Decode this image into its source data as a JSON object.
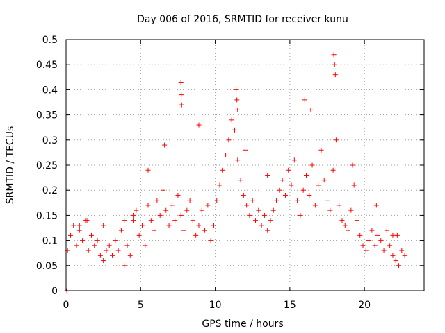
{
  "chart_data": {
    "type": "scatter",
    "title": "Day 006 of 2016, SRMTID for receiver kunu",
    "xlabel": "GPS time / hours",
    "ylabel": "SRMTID / TECUs",
    "xlim": [
      0,
      24
    ],
    "ylim": [
      0,
      0.5
    ],
    "xticks": [
      0,
      5,
      10,
      15,
      20
    ],
    "xtick_labels": [
      "0",
      "5",
      "10",
      "15",
      "20"
    ],
    "yticks": [
      0,
      0.05,
      0.1,
      0.15,
      0.2,
      0.25,
      0.3,
      0.35,
      0.4,
      0.45,
      0.5
    ],
    "ytick_labels": [
      "0",
      "0.05",
      "0.1",
      "0.15",
      "0.2",
      "0.25",
      "0.3",
      "0.35",
      "0.4",
      "0.45",
      "0.5"
    ],
    "grid": true,
    "marker": "+",
    "color": "#ff0000",
    "series": [
      {
        "name": "SRMTID",
        "x": [
          0.05,
          0.1,
          0.3,
          0.5,
          0.7,
          0.9,
          1.1,
          1.3,
          1.5,
          1.7,
          1.9,
          2.1,
          2.3,
          2.5,
          2.7,
          2.9,
          3.1,
          3.3,
          3.5,
          3.7,
          3.9,
          4.1,
          4.3,
          4.5,
          4.7,
          4.9,
          5.1,
          5.3,
          5.5,
          5.7,
          5.9,
          6.1,
          6.3,
          6.5,
          6.7,
          6.9,
          7.1,
          7.3,
          7.5,
          7.7,
          7.9,
          8.1,
          8.3,
          8.5,
          8.7,
          8.9,
          9.1,
          9.3,
          9.5,
          9.7,
          9.9,
          10.1,
          10.3,
          10.5,
          10.7,
          10.9,
          11.1,
          11.3,
          11.5,
          11.7,
          11.9,
          12.1,
          12.3,
          12.5,
          12.7,
          12.9,
          13.1,
          13.3,
          13.5,
          13.7,
          13.9,
          14.1,
          14.3,
          14.5,
          14.7,
          14.9,
          15.1,
          15.3,
          15.5,
          15.7,
          15.9,
          16.1,
          16.3,
          16.5,
          16.7,
          16.9,
          17.1,
          17.3,
          17.5,
          17.7,
          17.9,
          18.1,
          18.3,
          18.5,
          18.7,
          18.9,
          19.1,
          19.3,
          19.5,
          19.7,
          19.9,
          20.1,
          20.3,
          20.5,
          20.7,
          20.9,
          21.1,
          21.3,
          21.5,
          21.7,
          21.9,
          22.1,
          22.3,
          22.5,
          22.7,
          7.7,
          7.72,
          7.75,
          11.4,
          11.45,
          11.5,
          17.95,
          18.0,
          18.05,
          16.0,
          16.4,
          8.9,
          6.6,
          5.5,
          4.5,
          12.0,
          13.5,
          19.2,
          20.8,
          3.9,
          2.5,
          0.9,
          1.4,
          22.2,
          21.9
        ],
        "y": [
          0.0,
          0.08,
          0.11,
          0.13,
          0.09,
          0.12,
          0.1,
          0.14,
          0.08,
          0.11,
          0.09,
          0.1,
          0.07,
          0.06,
          0.08,
          0.09,
          0.07,
          0.1,
          0.08,
          0.12,
          0.05,
          0.09,
          0.07,
          0.15,
          0.16,
          0.11,
          0.13,
          0.09,
          0.17,
          0.14,
          0.12,
          0.18,
          0.15,
          0.2,
          0.16,
          0.13,
          0.17,
          0.14,
          0.19,
          0.15,
          0.12,
          0.16,
          0.18,
          0.14,
          0.11,
          0.13,
          0.16,
          0.12,
          0.17,
          0.1,
          0.13,
          0.18,
          0.21,
          0.24,
          0.27,
          0.3,
          0.34,
          0.32,
          0.26,
          0.22,
          0.19,
          0.17,
          0.15,
          0.18,
          0.14,
          0.16,
          0.13,
          0.15,
          0.12,
          0.14,
          0.16,
          0.18,
          0.2,
          0.22,
          0.19,
          0.24,
          0.21,
          0.26,
          0.18,
          0.15,
          0.2,
          0.23,
          0.19,
          0.25,
          0.17,
          0.21,
          0.28,
          0.22,
          0.18,
          0.16,
          0.24,
          0.3,
          0.17,
          0.14,
          0.13,
          0.12,
          0.16,
          0.21,
          0.14,
          0.11,
          0.09,
          0.08,
          0.1,
          0.12,
          0.09,
          0.11,
          0.1,
          0.08,
          0.12,
          0.09,
          0.07,
          0.06,
          0.05,
          0.08,
          0.07,
          0.415,
          0.39,
          0.37,
          0.4,
          0.38,
          0.36,
          0.47,
          0.45,
          0.43,
          0.38,
          0.36,
          0.33,
          0.29,
          0.24,
          0.14,
          0.28,
          0.23,
          0.25,
          0.17,
          0.14,
          0.13,
          0.13,
          0.14,
          0.11,
          0.11
        ]
      }
    ]
  }
}
